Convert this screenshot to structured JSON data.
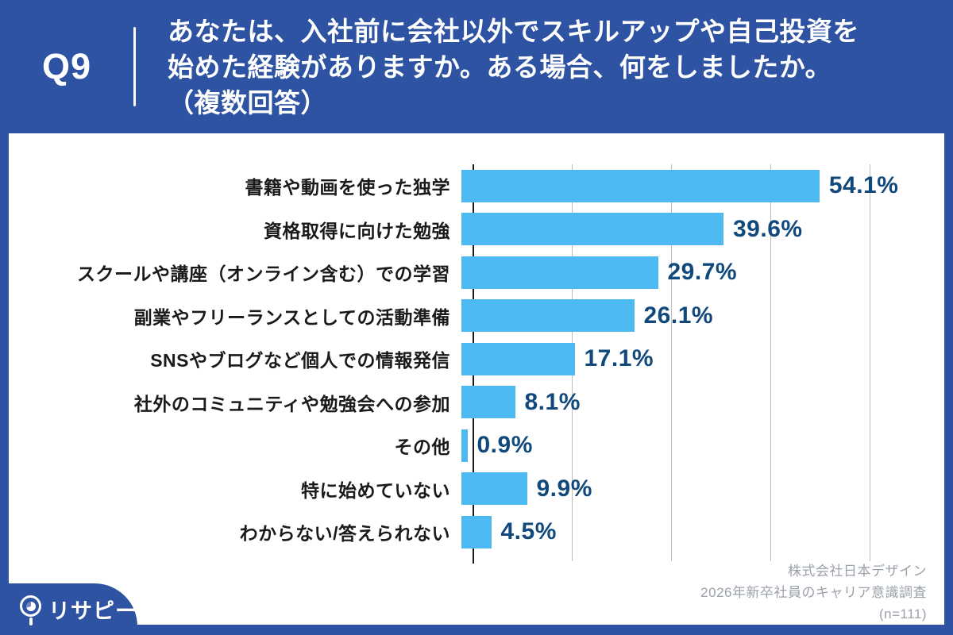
{
  "header": {
    "question_number": "Q9",
    "question_lines": [
      "あなたは、入社前に会社以外でスキルアップや自己投資を",
      "始めた経験がありますか。ある場合、何をしましたか。",
      "（複数回答）"
    ]
  },
  "chart_data": {
    "type": "bar",
    "orientation": "horizontal",
    "title": "Q9 あなたは、入社前に会社以外でスキルアップや自己投資を始めた経験がありますか。ある場合、何をしましたか。（複数回答）",
    "categories": [
      "書籍や動画を使った独学",
      "資格取得に向けた勉強",
      "スクールや講座（オンライン含む）での学習",
      "副業やフリーランスとしての活動準備",
      "SNSやブログなど個人での情報発信",
      "社外のコミュニティや勉強会への参加",
      "その他",
      "特に始めていない",
      "わからない/答えられない"
    ],
    "values": [
      54.1,
      39.6,
      29.7,
      26.1,
      17.1,
      8.1,
      0.9,
      9.9,
      4.5
    ],
    "value_labels": [
      "54.1%",
      "39.6%",
      "29.7%",
      "26.1%",
      "17.1%",
      "8.1%",
      "0.9%",
      "9.9%",
      "4.5%"
    ],
    "xlabel": "",
    "ylabel": "",
    "xlim": [
      0,
      60
    ],
    "grid": true,
    "grid_ticks": [
      15,
      30,
      45,
      60
    ],
    "legend": false,
    "bar_color": "#4DB9F1",
    "value_label_color": "#11497D"
  },
  "footer": {
    "source_lines": [
      "株式会社日本デザイン",
      "2026年新卒社員のキャリア意識調査",
      "(n=111)"
    ]
  },
  "logo": {
    "text": "リサピー"
  },
  "colors": {
    "frame_blue": "#2F53A3",
    "bar_blue": "#4DB9F1",
    "value_navy": "#11497D",
    "label_black": "#1a1a1a",
    "gridline_gray": "#bcbcbc",
    "source_gray": "#9BA1AA",
    "card_white": "#ffffff"
  }
}
